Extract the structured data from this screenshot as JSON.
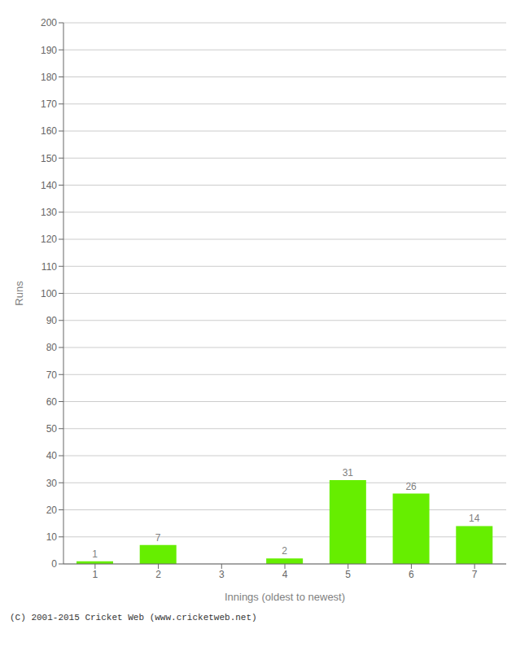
{
  "chart_data": {
    "type": "bar",
    "categories": [
      "1",
      "2",
      "3",
      "4",
      "5",
      "6",
      "7"
    ],
    "values": [
      1,
      7,
      0,
      2,
      31,
      26,
      14
    ],
    "color": "#66ee00",
    "xlabel": "Innings (oldest to newest)",
    "ylabel": "Runs",
    "ylim": [
      0,
      200
    ],
    "yticks": [
      0,
      10,
      20,
      30,
      40,
      50,
      60,
      70,
      80,
      90,
      100,
      110,
      120,
      130,
      140,
      150,
      160,
      170,
      180,
      190,
      200
    ],
    "grid": true,
    "data_labels": true,
    "annotations": [
      "(C) 2001-2015 Cricket Web (www.cricketweb.net)"
    ]
  }
}
